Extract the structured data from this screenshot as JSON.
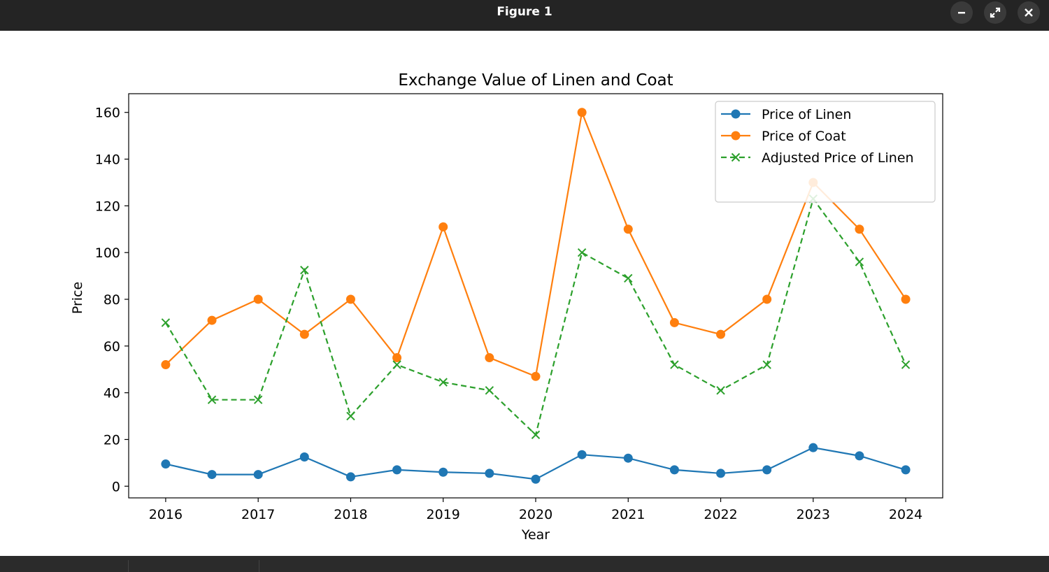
{
  "window": {
    "title": "Figure 1",
    "buttons": {
      "minimize": "minimize-icon",
      "maximize": "maximize-icon",
      "close": "close-icon"
    }
  },
  "chart_data": {
    "type": "line",
    "title": "Exchange Value of Linen and Coat",
    "xlabel": "Year",
    "ylabel": "Price",
    "xlim": [
      2015.6,
      2024.4
    ],
    "ylim": [
      -5,
      168
    ],
    "xticks": [
      2016,
      2017,
      2018,
      2019,
      2020,
      2021,
      2022,
      2023,
      2024
    ],
    "xtick_labels": [
      "2016",
      "2017",
      "2018",
      "2019",
      "2020",
      "2021",
      "2022",
      "2023",
      "2024"
    ],
    "yticks": [
      0,
      20,
      40,
      60,
      80,
      100,
      120,
      140,
      160
    ],
    "ytick_labels": [
      "0",
      "20",
      "40",
      "60",
      "80",
      "100",
      "120",
      "140",
      "160"
    ],
    "x": [
      2016,
      2016.5,
      2017,
      2017.5,
      2018,
      2018.5,
      2019,
      2019.5,
      2020,
      2020.5,
      2021,
      2021.5,
      2022,
      2022.5,
      2023,
      2023.5,
      2024
    ],
    "grid": false,
    "legend_position": "top-right",
    "series": [
      {
        "name": "Price of Linen",
        "color": "#1f77b4",
        "style": "solid",
        "marker": "circle",
        "values": [
          9.5,
          5,
          5,
          12.5,
          4,
          7,
          6,
          5.5,
          3,
          13.5,
          12,
          7,
          5.5,
          7,
          16.5,
          13,
          7
        ]
      },
      {
        "name": "Price of Coat",
        "color": "#ff7f0e",
        "style": "solid",
        "marker": "circle",
        "values": [
          52,
          71,
          80,
          65,
          80,
          55,
          111,
          55,
          47,
          160,
          110,
          70,
          65,
          80,
          130,
          110,
          80
        ]
      },
      {
        "name": "Adjusted Price of Linen",
        "color": "#2ca02c",
        "style": "dashed",
        "marker": "x",
        "values": [
          70,
          37,
          37,
          92.5,
          30,
          52,
          44.5,
          41,
          22,
          100,
          89,
          52,
          41,
          52,
          123,
          96,
          52
        ]
      }
    ]
  }
}
